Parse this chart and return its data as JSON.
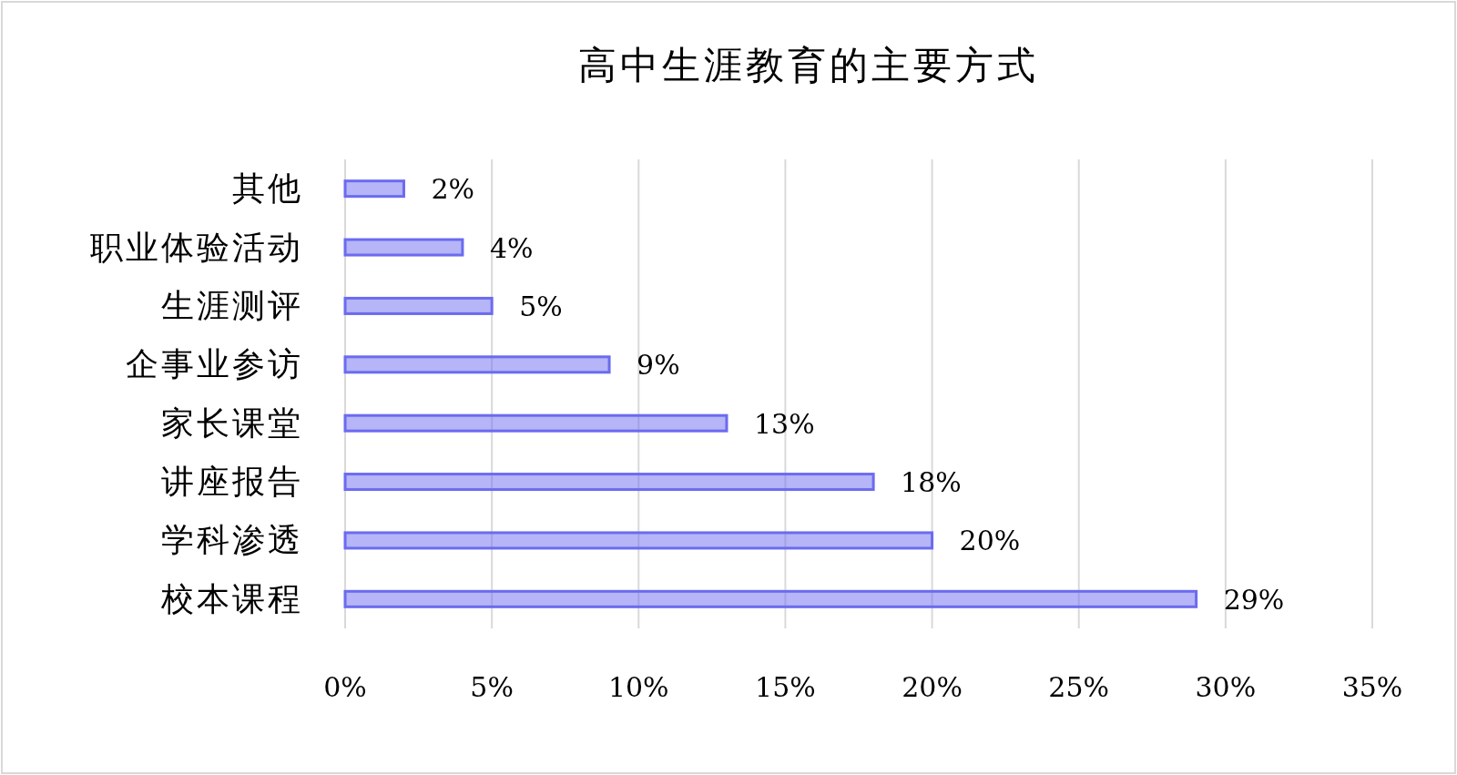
{
  "chart_data": {
    "type": "bar",
    "orientation": "horizontal",
    "title": "高中生涯教育的主要方式",
    "categories": [
      "其他",
      "职业体验活动",
      "生涯测评",
      "企事业参访",
      "家长课堂",
      "讲座报告",
      "学科渗透",
      "校本课程"
    ],
    "values": [
      2,
      4,
      5,
      9,
      13,
      18,
      20,
      29
    ],
    "value_labels": [
      "2%",
      "4%",
      "5%",
      "9%",
      "13%",
      "18%",
      "20%",
      "29%"
    ],
    "color": "#6b6bef",
    "xlim": [
      0,
      35
    ],
    "xticks": [
      {
        "value": 0,
        "label": "0%"
      },
      {
        "value": 5,
        "label": "5%"
      },
      {
        "value": 10,
        "label": "10%"
      },
      {
        "value": 15,
        "label": "15%"
      },
      {
        "value": 20,
        "label": "20%"
      },
      {
        "value": 25,
        "label": "25%"
      },
      {
        "value": 30,
        "label": "30%"
      },
      {
        "value": 35,
        "label": "35%"
      }
    ],
    "grid": "x"
  }
}
